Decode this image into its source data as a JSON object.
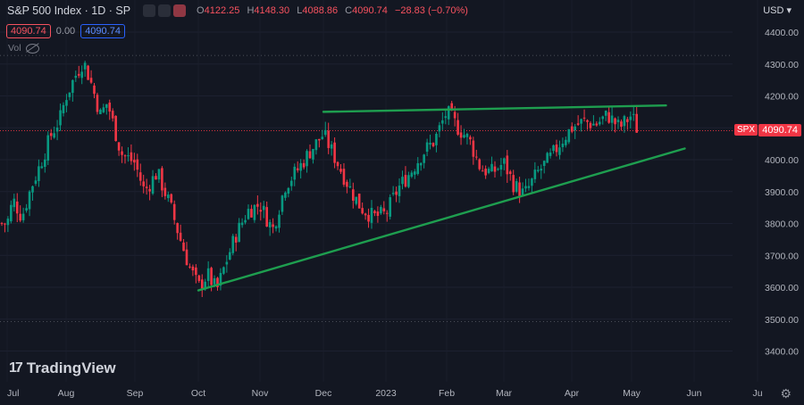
{
  "header": {
    "title": "S&P 500 Index · 1D · SP",
    "open_label": "O",
    "open": "4122.25",
    "high_label": "H",
    "high": "4148.30",
    "low_label": "L",
    "low": "4088.86",
    "close_label": "C",
    "close": "4090.74",
    "change": "−28.83 (−0.70%)"
  },
  "quote": {
    "bid": "4090.74",
    "spread": "0.00",
    "ask": "4090.74"
  },
  "volume_label": "Vol",
  "currency": "USD",
  "price_tag": "4090.74",
  "symbol_tag": "SPX",
  "logo_text": "TradingView",
  "colors": {
    "up": "#089981",
    "down": "#f23645",
    "trendline": "#1e9e4f",
    "background": "#131722"
  },
  "chart_data": {
    "type": "candlestick",
    "title": "S&P 500 Index · 1D · SP",
    "ylim": [
      3350,
      4450
    ],
    "y_ticks": [
      3400,
      3500,
      3600,
      3700,
      3800,
      3900,
      4000,
      4100,
      4200,
      4300,
      4400
    ],
    "y_tick_labels": [
      "3400.00",
      "3500.00",
      "3600.00",
      "3700.00",
      "3800.00",
      "3900.00",
      "4000.00",
      "4100.00",
      "4200.00",
      "4300.00",
      "4400.00"
    ],
    "x_ticks": [
      "Jul",
      "Aug",
      "Sep",
      "Oct",
      "Nov",
      "Dec",
      "2023",
      "Feb",
      "Mar",
      "Apr",
      "May",
      "Jun",
      "Ju"
    ],
    "x_tick_months": [
      0,
      1,
      2,
      3,
      4,
      5,
      6,
      7,
      8,
      9,
      10,
      11,
      12
    ],
    "reference_levels": [
      4327,
      3492,
      4090.74
    ],
    "close_series_anchors": [
      [
        0,
        3800
      ],
      [
        0.1,
        3875
      ],
      [
        0.25,
        3820
      ],
      [
        0.4,
        3910
      ],
      [
        0.55,
        3980
      ],
      [
        0.75,
        4080
      ],
      [
        0.9,
        4130
      ],
      [
        1.0,
        4200
      ],
      [
        1.15,
        4270
      ],
      [
        1.25,
        4310
      ],
      [
        1.35,
        4250
      ],
      [
        1.5,
        4140
      ],
      [
        1.6,
        4180
      ],
      [
        1.8,
        4020
      ],
      [
        2.0,
        3990
      ],
      [
        2.15,
        3900
      ],
      [
        2.35,
        3960
      ],
      [
        2.55,
        3860
      ],
      [
        2.7,
        3760
      ],
      [
        2.85,
        3670
      ],
      [
        3.0,
        3600
      ],
      [
        3.15,
        3640
      ],
      [
        3.3,
        3590
      ],
      [
        3.45,
        3680
      ],
      [
        3.6,
        3760
      ],
      [
        3.8,
        3840
      ],
      [
        4.0,
        3860
      ],
      [
        4.2,
        3780
      ],
      [
        4.4,
        3920
      ],
      [
        4.6,
        3970
      ],
      [
        4.8,
        4030
      ],
      [
        5.0,
        4080
      ],
      [
        5.15,
        4020
      ],
      [
        5.3,
        3960
      ],
      [
        5.45,
        3900
      ],
      [
        5.6,
        3850
      ],
      [
        5.8,
        3820
      ],
      [
        6.0,
        3830
      ],
      [
        6.2,
        3910
      ],
      [
        6.4,
        3960
      ],
      [
        6.6,
        4020
      ],
      [
        6.8,
        4060
      ],
      [
        7.0,
        4150
      ],
      [
        7.2,
        4100
      ],
      [
        7.4,
        4060
      ],
      [
        7.6,
        3970
      ],
      [
        7.8,
        3960
      ],
      [
        8.0,
        3990
      ],
      [
        8.15,
        3920
      ],
      [
        8.3,
        3890
      ],
      [
        8.5,
        3960
      ],
      [
        8.7,
        4010
      ],
      [
        8.85,
        4060
      ],
      [
        9.0,
        4100
      ],
      [
        9.2,
        4120
      ],
      [
        9.4,
        4110
      ],
      [
        9.6,
        4140
      ],
      [
        9.8,
        4100
      ],
      [
        10.0,
        4140
      ],
      [
        10.1,
        4090
      ]
    ],
    "lines": [
      {
        "name": "",
        "from": [
          5.0,
          4150
        ],
        "to": [
          10.55,
          4170
        ]
      },
      {
        "name": "",
        "from": [
          3.0,
          3590
        ],
        "to": [
          10.85,
          4035
        ]
      }
    ]
  }
}
